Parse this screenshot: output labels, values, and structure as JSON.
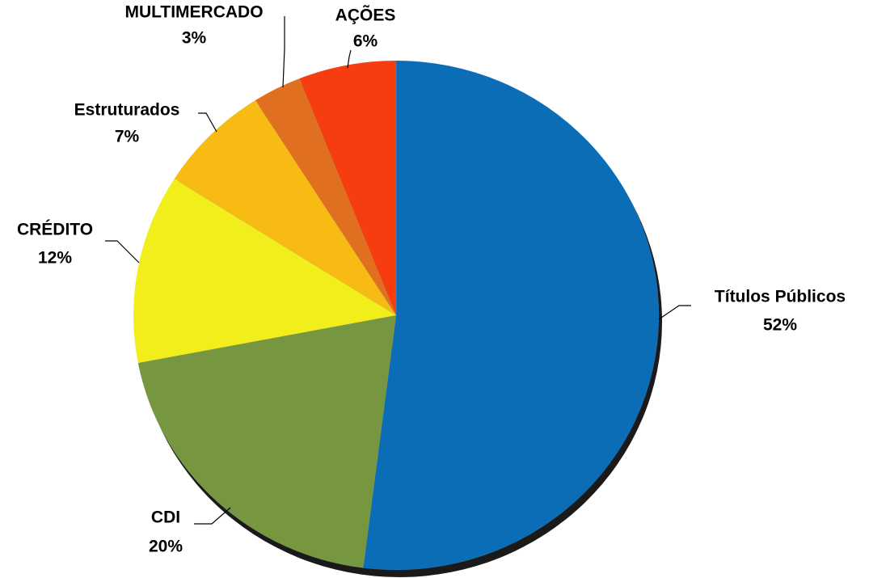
{
  "chart_data": {
    "type": "pie",
    "categories": [
      "Títulos Públicos",
      "CDI",
      "CRÉDITO",
      "Estruturados",
      "MULTIMERCADO",
      "AÇÕES"
    ],
    "values": [
      52,
      20,
      12,
      7,
      3,
      6
    ],
    "value_labels": [
      "52%",
      "20%",
      "12%",
      "7%",
      "3%",
      "6%"
    ],
    "colors": [
      "#0a6db5",
      "#779640",
      "#f2ee1c",
      "#f7bb14",
      "#e07020",
      "#f53d10"
    ]
  }
}
